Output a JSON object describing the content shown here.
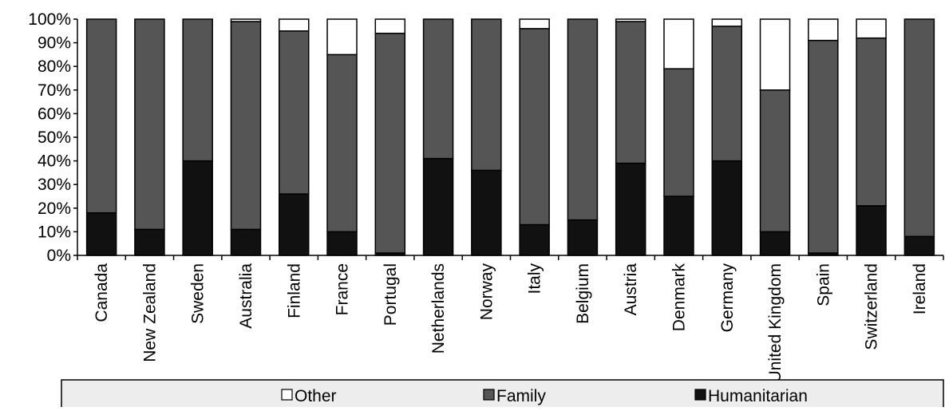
{
  "chart_data": {
    "type": "bar",
    "stacked": true,
    "percent": true,
    "categories": [
      "Canada",
      "New Zealand",
      "Sweden",
      "Australia",
      "Finland",
      "France",
      "Portugal",
      "Netherlands",
      "Norway",
      "Italy",
      "Belgium",
      "Austria",
      "Denmark",
      "Germany",
      "United Kingdom",
      "Spain",
      "Switzerland",
      "Ireland"
    ],
    "series": [
      {
        "name": "Humanitarian",
        "color": "#111111",
        "values": [
          18,
          11,
          40,
          11,
          26,
          10,
          1,
          41,
          36,
          13,
          15,
          39,
          25,
          40,
          10,
          1,
          21,
          8
        ]
      },
      {
        "name": "Family",
        "color": "#555555",
        "values": [
          82,
          89,
          60,
          88,
          69,
          75,
          93,
          59,
          64,
          83,
          85,
          60,
          54,
          57,
          60,
          90,
          71,
          92
        ]
      },
      {
        "name": "Other",
        "color": "#ffffff",
        "values": [
          0,
          0,
          0,
          1,
          5,
          15,
          6,
          0,
          0,
          4,
          0,
          1,
          21,
          3,
          30,
          9,
          8,
          0
        ]
      }
    ],
    "yticks": [
      "0%",
      "10%",
      "20%",
      "30%",
      "40%",
      "50%",
      "60%",
      "70%",
      "80%",
      "90%",
      "100%"
    ],
    "ylim": [
      0,
      100
    ],
    "legend_order": [
      "Other",
      "Family",
      "Humanitarian"
    ],
    "legend_position": "bottom",
    "grid": false
  }
}
